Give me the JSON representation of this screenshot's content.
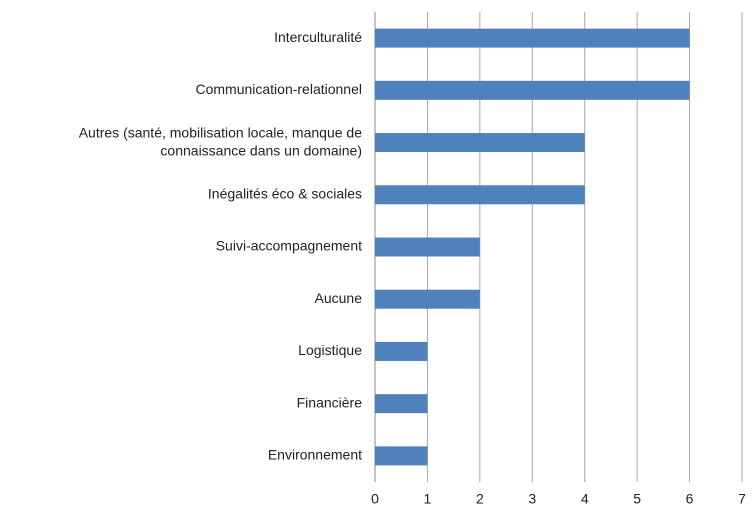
{
  "chart_data": {
    "type": "barh",
    "categories": [
      "Interculturalité",
      "Communication-relationnel",
      "Autres (santé, mobilisation locale, manque de\nconnaissance dans un domaine)",
      "Inégalités éco & sociales",
      "Suivi-accompagnement",
      "Aucune",
      "Logistique",
      "Financière",
      "Environnement"
    ],
    "values": [
      6,
      6,
      4,
      4,
      2,
      2,
      1,
      1,
      1
    ],
    "color": "#4f81bd",
    "xlim": [
      0,
      7
    ],
    "xticks": [
      0,
      1,
      2,
      3,
      4,
      5,
      6,
      7
    ],
    "grid": true
  }
}
